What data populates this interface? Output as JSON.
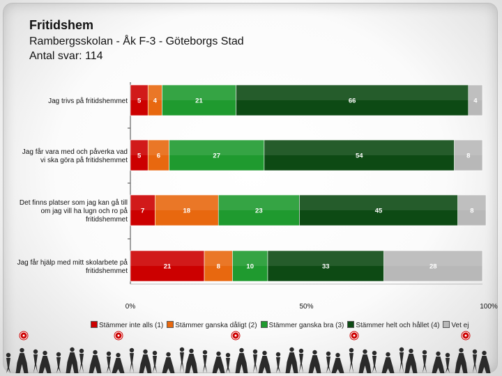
{
  "header": {
    "title": "Fritidshem",
    "subtitle": "Rambergsskolan - Åk F-3 - Göteborgs Stad",
    "responses": "Antal svar: 114"
  },
  "chart_data": {
    "type": "bar",
    "orientation": "horizontal",
    "stacked": true,
    "percent": true,
    "categories": [
      "Jag trivs på fritidshemmet",
      "Jag får vara med och påverka vad vi ska göra på fritidshemmet",
      "Det finns platser som jag kan gå till om jag vill ha lugn och ro på fritidshemmet",
      "Jag får hjälp med mitt skolarbete på fritidshemmet"
    ],
    "category_lines": [
      [
        "Jag trivs på fritidshemmet"
      ],
      [
        "Jag får vara med och påverka vad",
        "vi ska göra på fritidshemmet"
      ],
      [
        "Det finns platser som jag kan gå till",
        "om jag vill ha lugn och ro på",
        "fritidshemmet"
      ],
      [
        "Jag får hjälp med mitt skolarbete på",
        "fritidshemmet"
      ]
    ],
    "series": [
      {
        "name": "Stämmer inte alls (1)",
        "color": "#cc0000",
        "values": [
          5,
          5,
          7,
          21
        ]
      },
      {
        "name": "Stämmer ganska dåligt (2)",
        "color": "#e8680f",
        "values": [
          4,
          6,
          18,
          8
        ]
      },
      {
        "name": "Stämmer ganska bra (3)",
        "color": "#1f9a2f",
        "values": [
          21,
          27,
          23,
          10
        ]
      },
      {
        "name": "Stämmer helt och hållet (4)",
        "color": "#0d4a14",
        "values": [
          66,
          54,
          45,
          33
        ]
      },
      {
        "name": "Vet ej",
        "color": "#b8b8b8",
        "values": [
          4,
          8,
          8,
          28
        ]
      }
    ],
    "xlim": [
      0,
      100
    ],
    "xticks": [
      "0%",
      "50%",
      "100%"
    ],
    "legend_position": "bottom",
    "grid": false
  }
}
